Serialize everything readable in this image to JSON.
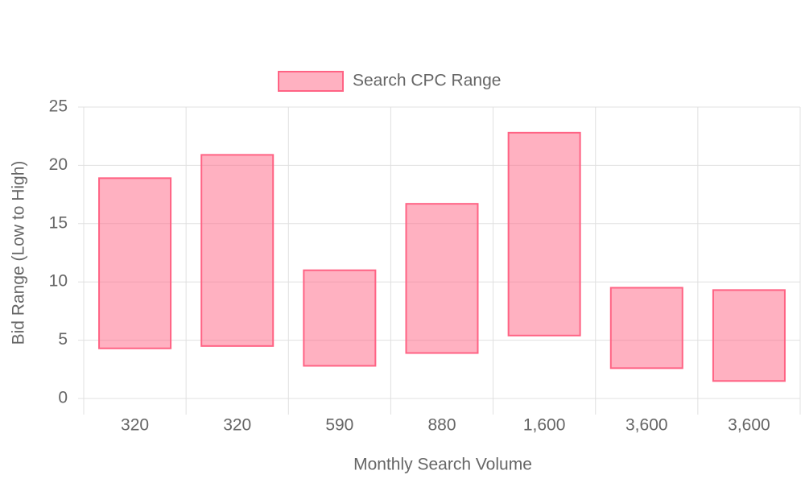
{
  "chart_data": {
    "type": "bar",
    "floating": true,
    "x_label": "Monthly Search Volume",
    "y_label": "Bid Range (Low to High)",
    "categories": [
      "320",
      "320",
      "590",
      "880",
      "1,600",
      "3,600",
      "3,600"
    ],
    "series": [
      {
        "name": "Search CPC Range",
        "color": "#ff6384",
        "values": [
          [
            4.3,
            18.9
          ],
          [
            4.5,
            20.9
          ],
          [
            2.8,
            11
          ],
          [
            3.9,
            16.7
          ],
          [
            5.4,
            22.8
          ],
          [
            2.6,
            9.5
          ],
          [
            1.5,
            9.3
          ]
        ]
      }
    ],
    "ylim": [
      0,
      25
    ],
    "yticks": [
      0,
      5,
      10,
      15,
      20,
      25
    ],
    "grid": true,
    "legend": "top"
  }
}
